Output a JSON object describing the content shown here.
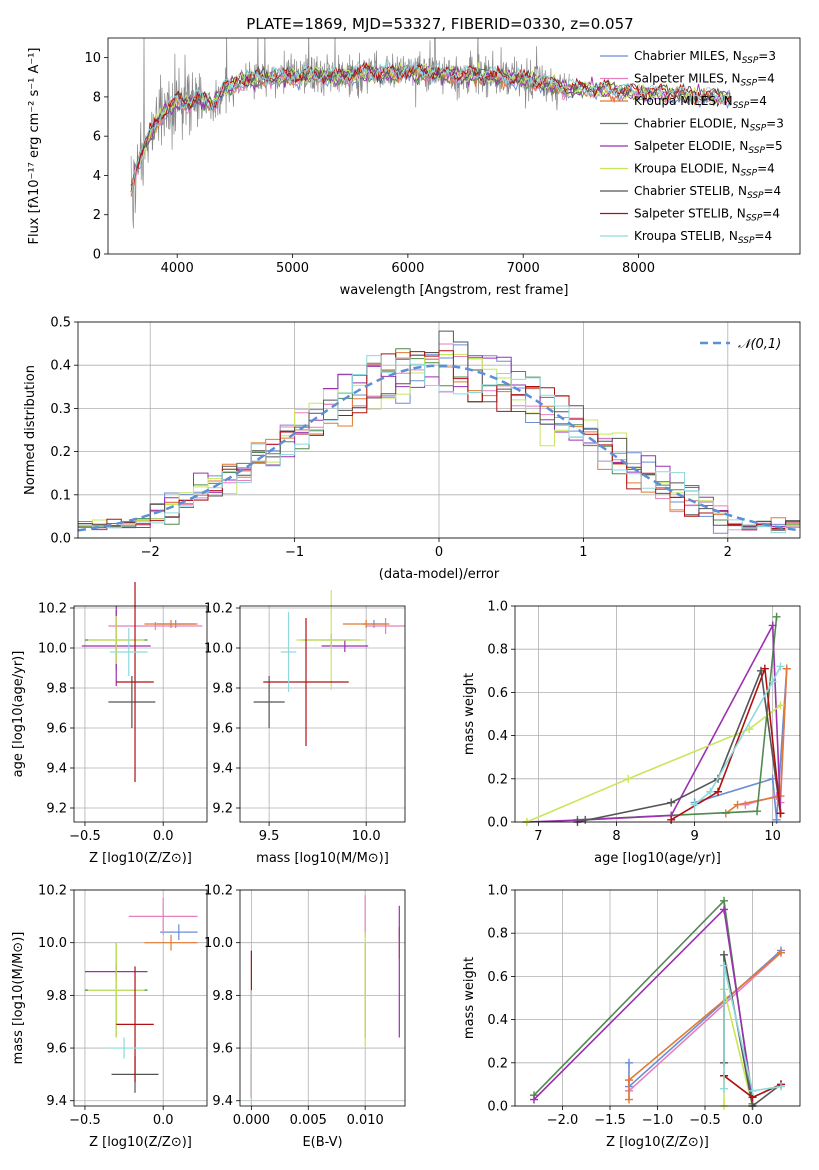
{
  "title": "PLATE=1869, MJD=53327, FIBERID=0330, z=0.057",
  "colors": {
    "chabrier_miles": "#6b8dd6",
    "salpeter_miles": "#e77fbf",
    "kroupa_miles": "#e07a35",
    "chabrier_elodie": "#4f8a4f",
    "salpeter_elodie": "#9b30b0",
    "kroupa_elodie": "#c8e65a",
    "chabrier_stelib": "#555555",
    "salpeter_stelib": "#b01010",
    "kroupa_stelib": "#8fd9dc",
    "data": "#888888",
    "normal": "#5b8fd6"
  },
  "chart_data": [
    {
      "type": "line",
      "title": "PLATE=1869, MJD=53327, FIBERID=0330, z=0.057",
      "xlabel": "wavelength [Angstrom, rest frame]",
      "ylabel": "Flux [fλ10⁻¹⁷ erg cm⁻² s⁻¹ A⁻¹]",
      "xlim": [
        3400,
        9400
      ],
      "ylim": [
        0,
        11
      ],
      "xticks": [
        4000,
        5000,
        6000,
        7000,
        8000
      ],
      "yticks": [
        0,
        2,
        4,
        6,
        8,
        10
      ],
      "grid": false,
      "legend_position": "upper right",
      "legend": [
        "Chabrier MILES, N_SSP=3",
        "Salpeter MILES, N_SSP=4",
        "Kroupa MILES, N_SSP=4",
        "Chabrier ELODIE, N_SSP=3",
        "Salpeter ELODIE, N_SSP=5",
        "Kroupa ELODIE, N_SSP=4",
        "Chabrier STELIB, N_SSP=4",
        "Salpeter STELIB, N_SSP=4",
        "Kroupa STELIB, N_SSP=4"
      ],
      "continuum_wavelength": [
        3600,
        3650,
        3700,
        3800,
        3900,
        4000,
        4100,
        4200,
        4300,
        4400,
        4600,
        4800,
        5000,
        5200,
        5400,
        5600,
        5800,
        6000,
        6200,
        6400,
        6600,
        6800,
        7000,
        7200,
        7400,
        7600,
        7800,
        8000,
        8200,
        8400,
        8600,
        8800
      ],
      "continuum_flux": [
        3.2,
        4.5,
        5.2,
        6.5,
        7.3,
        7.8,
        7.6,
        8.0,
        7.5,
        8.4,
        8.9,
        9.0,
        9.0,
        9.1,
        9.0,
        9.2,
        9.2,
        9.3,
        9.2,
        9.1,
        9.1,
        9.0,
        8.9,
        8.7,
        8.4,
        8.4,
        8.3,
        8.2,
        8.2,
        8.1,
        8.0,
        8.0
      ],
      "data_wavelength_range": [
        3600,
        7400
      ]
    },
    {
      "type": "bar",
      "xlabel": "(data-model)/error",
      "ylabel": "Normed distribution",
      "xlim": [
        -2.5,
        2.5
      ],
      "ylim": [
        0,
        0.5
      ],
      "xticks": [
        -2,
        -1,
        0,
        1,
        2
      ],
      "yticks": [
        0.0,
        0.1,
        0.2,
        0.3,
        0.4,
        0.5
      ],
      "grid": true,
      "legend_position": "upper right",
      "legend": [
        "𝒩(0,1)"
      ],
      "bin_width": 0.1
    },
    {
      "type": "scatter",
      "xlabel": "Z [log10(Z/Z⊙)]",
      "ylabel": "age  [log10(age/yr)]",
      "xlim": [
        -0.57,
        0.28
      ],
      "ylim": [
        9.13,
        10.21
      ],
      "xticks": [
        -0.5,
        0.0
      ],
      "yticks": [
        9.2,
        9.4,
        9.6,
        9.8,
        10.0,
        10.2
      ],
      "grid": true,
      "points": [
        {
          "series": "chabrier_miles",
          "x": 0.08,
          "y": 10.12,
          "xerr": 0.12,
          "yerr": 0.02
        },
        {
          "series": "salpeter_miles",
          "x": -0.05,
          "y": 10.11,
          "xerr": 0.3,
          "yerr": 0.02
        },
        {
          "series": "kroupa_miles",
          "x": 0.05,
          "y": 10.12,
          "xerr": 0.17,
          "yerr": 0.02
        },
        {
          "series": "chabrier_elodie",
          "x": -0.3,
          "y": 10.04,
          "xerr": 0.2,
          "yerr": 0.15
        },
        {
          "series": "salpeter_elodie",
          "x": -0.3,
          "y": 10.01,
          "xerr": 0.22,
          "yerr": 0.2
        },
        {
          "series": "kroupa_elodie",
          "x": -0.3,
          "y": 10.04,
          "xerr": 0.18,
          "yerr": 0.12
        },
        {
          "series": "chabrier_stelib",
          "x": -0.2,
          "y": 9.73,
          "xerr": 0.15,
          "yerr": 0.13
        },
        {
          "series": "salpeter_stelib",
          "x": -0.18,
          "y": 9.83,
          "xerr": 0.12,
          "yerr": 0.5
        },
        {
          "series": "kroupa_stelib",
          "x": -0.22,
          "y": 9.98,
          "xerr": 0.12,
          "yerr": 0.12
        }
      ]
    },
    {
      "type": "scatter",
      "xlabel": "mass [log10(M/M⊙)]",
      "ylabel": "",
      "xlim": [
        9.35,
        10.2
      ],
      "ylim": [
        9.13,
        10.21
      ],
      "xticks": [
        9.5,
        10.0
      ],
      "yticks": [
        9.2,
        9.4,
        9.6,
        9.8,
        10.0,
        10.2
      ],
      "grid": true,
      "points": [
        {
          "series": "chabrier_miles",
          "x": 10.04,
          "y": 10.12,
          "xerr": 0.06,
          "yerr": 0.02
        },
        {
          "series": "salpeter_miles",
          "x": 10.1,
          "y": 10.11,
          "xerr": 0.1,
          "yerr": 0.04
        },
        {
          "series": "kroupa_miles",
          "x": 10.0,
          "y": 10.12,
          "xerr": 0.12,
          "yerr": 0.02
        },
        {
          "series": "chabrier_elodie",
          "x": 9.82,
          "y": 10.04,
          "xerr": 0.15,
          "yerr": 0.03
        },
        {
          "series": "salpeter_elodie",
          "x": 9.89,
          "y": 10.01,
          "xerr": 0.12,
          "yerr": 0.03
        },
        {
          "series": "kroupa_elodie",
          "x": 9.82,
          "y": 10.04,
          "xerr": 0.18,
          "yerr": 0.25
        },
        {
          "series": "chabrier_stelib",
          "x": 9.5,
          "y": 9.73,
          "xerr": 0.08,
          "yerr": 0.13
        },
        {
          "series": "salpeter_stelib",
          "x": 9.69,
          "y": 9.83,
          "xerr": 0.22,
          "yerr": 0.32
        },
        {
          "series": "kroupa_stelib",
          "x": 9.6,
          "y": 9.98,
          "xerr": 0.04,
          "yerr": 0.2
        }
      ]
    },
    {
      "type": "line",
      "xlabel": "age  [log10(age/yr)]",
      "ylabel": "mass weight",
      "xlim": [
        6.7,
        10.35
      ],
      "ylim": [
        0,
        1.0
      ],
      "xticks": [
        7,
        8,
        9,
        10
      ],
      "yticks": [
        0.0,
        0.2,
        0.4,
        0.6,
        0.8,
        1.0
      ],
      "grid": true,
      "series": [
        {
          "key": "chabrier_miles",
          "x": [
            9.0,
            10.0,
            10.05,
            10.18
          ],
          "y": [
            0.09,
            0.2,
            0.01,
            0.71
          ]
        },
        {
          "key": "salpeter_miles",
          "x": [
            9.65,
            10.05,
            10.1,
            10.18
          ],
          "y": [
            0.08,
            0.12,
            0.09,
            0.71
          ]
        },
        {
          "key": "kroupa_miles",
          "x": [
            9.4,
            9.55,
            10.1,
            10.18
          ],
          "y": [
            0.04,
            0.08,
            0.12,
            0.71
          ]
        },
        {
          "key": "chabrier_elodie",
          "x": [
            7.5,
            9.8,
            10.05
          ],
          "y": [
            0.01,
            0.05,
            0.95
          ]
        },
        {
          "key": "salpeter_elodie",
          "x": [
            6.85,
            7.6,
            8.7,
            10.0,
            10.1
          ],
          "y": [
            0.0,
            0.01,
            0.03,
            0.91,
            0.04
          ]
        },
        {
          "key": "kroupa_elodie",
          "x": [
            6.85,
            8.15,
            9.7,
            10.1
          ],
          "y": [
            0.0,
            0.2,
            0.43,
            0.54
          ]
        },
        {
          "key": "chabrier_stelib",
          "x": [
            7.5,
            8.7,
            9.3,
            9.85,
            10.1
          ],
          "y": [
            0.0,
            0.09,
            0.2,
            0.7,
            0.04
          ]
        },
        {
          "key": "salpeter_stelib",
          "x": [
            8.7,
            9.3,
            9.9,
            10.1
          ],
          "y": [
            0.01,
            0.14,
            0.71,
            0.04
          ]
        },
        {
          "key": "kroupa_stelib",
          "x": [
            9.0,
            9.2,
            10.0,
            10.1
          ],
          "y": [
            0.08,
            0.14,
            0.65,
            0.72
          ]
        }
      ]
    },
    {
      "type": "scatter",
      "xlabel": "Z [log10(Z/Z⊙)]",
      "ylabel": "mass [log10(M/M⊙)]",
      "xlim": [
        -0.57,
        0.28
      ],
      "ylim": [
        9.38,
        10.2
      ],
      "xticks": [
        -0.5,
        0.0
      ],
      "yticks": [
        9.4,
        9.6,
        9.8,
        10.0,
        10.2
      ],
      "grid": true,
      "points": [
        {
          "series": "chabrier_miles",
          "x": 0.1,
          "y": 10.04,
          "xerr": 0.12,
          "yerr": 0.03
        },
        {
          "series": "salpeter_miles",
          "x": 0.0,
          "y": 10.1,
          "xerr": 0.22,
          "yerr": 0.07
        },
        {
          "series": "kroupa_miles",
          "x": 0.05,
          "y": 10.0,
          "xerr": 0.17,
          "yerr": 0.03
        },
        {
          "series": "chabrier_elodie",
          "x": -0.3,
          "y": 9.82,
          "xerr": 0.2,
          "yerr": 0.18
        },
        {
          "series": "salpeter_elodie",
          "x": -0.3,
          "y": 9.89,
          "xerr": 0.2,
          "yerr": 0.03
        },
        {
          "series": "kroupa_elodie",
          "x": -0.3,
          "y": 9.82,
          "xerr": 0.18,
          "yerr": 0.18
        },
        {
          "series": "chabrier_stelib",
          "x": -0.18,
          "y": 9.5,
          "xerr": 0.15,
          "yerr": 0.07
        },
        {
          "series": "salpeter_stelib",
          "x": -0.18,
          "y": 9.69,
          "xerr": 0.12,
          "yerr": 0.22
        },
        {
          "series": "kroupa_stelib",
          "x": -0.25,
          "y": 9.6,
          "xerr": 0.12,
          "yerr": 0.04
        }
      ]
    },
    {
      "type": "scatter",
      "xlabel": "E(B-V)",
      "ylabel": "",
      "xlim": [
        -0.001,
        0.0135
      ],
      "ylim": [
        9.38,
        10.2
      ],
      "xticks": [
        0.0,
        0.005,
        0.01
      ],
      "xtick_labels": [
        "0.000",
        "0.005",
        "0.010"
      ],
      "yticks": [
        9.4,
        9.6,
        9.8,
        10.0,
        10.2
      ],
      "grid": true,
      "points": [
        {
          "series": "chabrier_miles",
          "x": 0.013,
          "y": 10.04,
          "yerr": 0.02
        },
        {
          "series": "salpeter_miles",
          "x": 0.01,
          "y": 10.1,
          "yerr": 0.08
        },
        {
          "series": "kroupa_miles",
          "x": 0.013,
          "y": 10.0,
          "yerr": 0.06
        },
        {
          "series": "chabrier_elodie",
          "x": 0.01,
          "y": 9.82,
          "yerr": 0.18
        },
        {
          "series": "salpeter_elodie",
          "x": 0.013,
          "y": 9.89,
          "yerr": 0.25
        },
        {
          "series": "kroupa_elodie",
          "x": 0.01,
          "y": 9.82,
          "yerr": 0.22
        },
        {
          "series": "chabrier_stelib",
          "x": 0.0,
          "y": 9.5,
          "yerr": 0.08
        },
        {
          "series": "salpeter_stelib",
          "x": 0.0,
          "y": 9.69,
          "yerr": 0.28
        },
        {
          "series": "kroupa_stelib",
          "x": 0.0,
          "y": 9.6,
          "yerr": 0.22
        }
      ]
    },
    {
      "type": "line",
      "xlabel": "Z [log10(Z/Z⊙)]",
      "ylabel": "mass weight",
      "xlim": [
        -2.5,
        0.5
      ],
      "ylim": [
        0,
        1.0
      ],
      "xticks": [
        -2.0,
        -1.5,
        -1.0,
        -0.5,
        0.0
      ],
      "yticks": [
        0.0,
        0.2,
        0.4,
        0.6,
        0.8,
        1.0
      ],
      "grid": true,
      "series": [
        {
          "key": "chabrier_miles",
          "x": [
            -1.3,
            -1.3,
            0.3
          ],
          "y": [
            0.2,
            0.09,
            0.72
          ]
        },
        {
          "key": "salpeter_miles",
          "x": [
            -1.3,
            -1.3,
            0.3
          ],
          "y": [
            0.12,
            0.07,
            0.71
          ]
        },
        {
          "key": "kroupa_miles",
          "x": [
            -1.3,
            -1.3,
            0.3
          ],
          "y": [
            0.03,
            0.12,
            0.71
          ]
        },
        {
          "key": "chabrier_elodie",
          "x": [
            -2.3,
            -0.3,
            0.0
          ],
          "y": [
            0.05,
            0.95,
            0.01
          ]
        },
        {
          "key": "salpeter_elodie",
          "x": [
            -2.3,
            -0.3,
            0.0
          ],
          "y": [
            0.03,
            0.91,
            0.04
          ]
        },
        {
          "key": "kroupa_elodie",
          "x": [
            -0.3,
            -0.3,
            0.0
          ],
          "y": [
            0.0,
            0.54,
            0.0
          ]
        },
        {
          "key": "chabrier_stelib",
          "x": [
            -0.3,
            -0.3,
            0.0,
            0.3
          ],
          "y": [
            0.2,
            0.7,
            0.0,
            0.1
          ]
        },
        {
          "key": "salpeter_stelib",
          "x": [
            -0.3,
            0.0,
            0.3
          ],
          "y": [
            0.14,
            0.04,
            0.1
          ]
        },
        {
          "key": "kroupa_stelib",
          "x": [
            -0.3,
            -0.3,
            0.0,
            0.3
          ],
          "y": [
            0.08,
            0.65,
            0.07,
            0.09
          ]
        }
      ]
    }
  ]
}
